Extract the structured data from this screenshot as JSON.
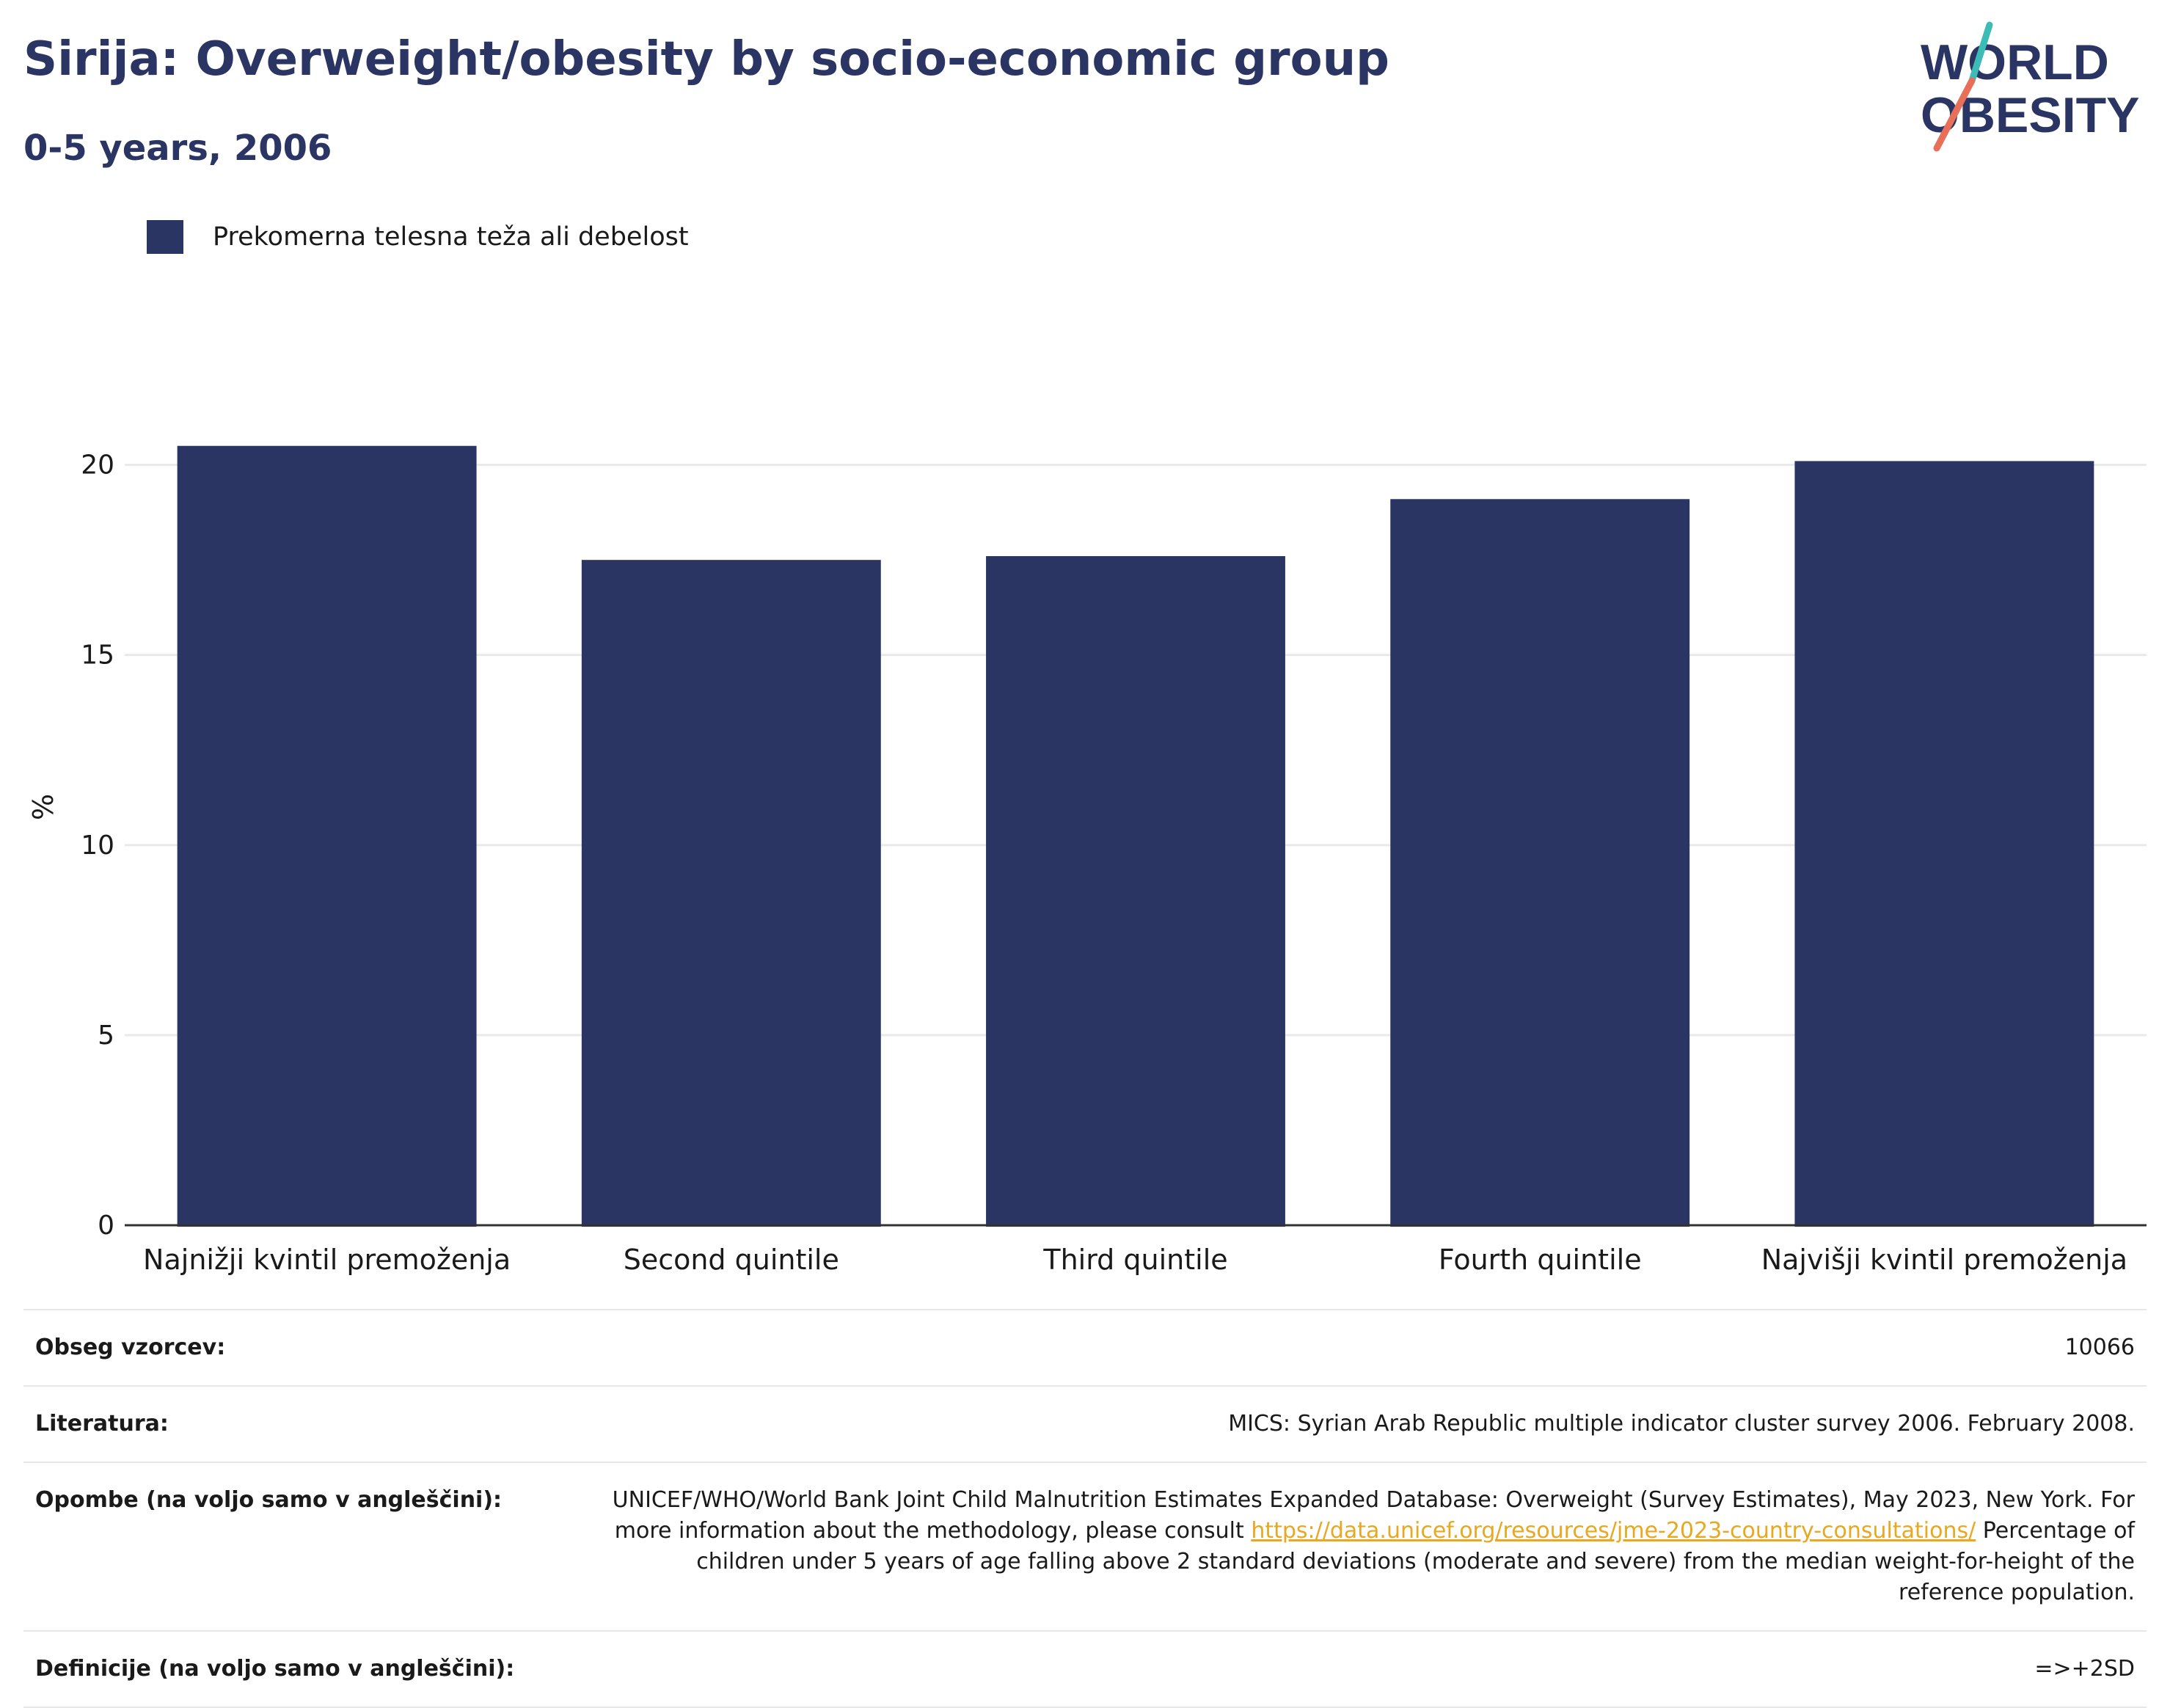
{
  "header": {
    "title": "Sirija: Overweight/obesity by socio-economic group",
    "subtitle": "0-5 years, 2006"
  },
  "logo": {
    "line1": "WORLD",
    "line2": "OBESITY"
  },
  "legend": {
    "label": "Prekomerna telesna teža ali debelost",
    "color": "#2a3563"
  },
  "chart_data": {
    "type": "bar",
    "title": "Sirija: Overweight/obesity by socio-economic group",
    "subtitle": "0-5 years, 2006",
    "xlabel": "",
    "ylabel": "%",
    "ylim": [
      0,
      22
    ],
    "yticks": [
      0,
      5,
      10,
      15,
      20
    ],
    "categories": [
      "Najnižji kvintil premoženja",
      "Second quintile",
      "Third quintile",
      "Fourth quintile",
      "Najvišji kvintil premoženja"
    ],
    "series": [
      {
        "name": "Prekomerna telesna teža ali debelost",
        "values": [
          20.5,
          17.5,
          17.6,
          19.1,
          20.1
        ],
        "color": "#2a3563"
      }
    ],
    "grid": true,
    "legend_position": "top-left"
  },
  "info": {
    "sample_size_label": "Obseg vzorcev:",
    "sample_size_value": "10066",
    "references_label": "Literatura:",
    "references_value": "MICS: Syrian Arab Republic multiple indicator cluster survey 2006. February 2008.",
    "notes_label": "Opombe (na voljo samo v angleščini):",
    "notes_text_1": "UNICEF/WHO/World Bank Joint Child Malnutrition Estimates Expanded Database: Overweight (Survey Estimates), May 2023, New York. For more information about the methodology, please consult ",
    "notes_link": "https://data.unicef.org/resources/jme-2023-country-consultations/",
    "notes_text_2": " Percentage of children under 5 years of age falling above 2 standard deviations (moderate and severe) from the median weight-for-height of the reference population.",
    "definitions_label": "Definicije (na voljo samo v angleščini):",
    "definitions_value": "=>+2SD"
  }
}
